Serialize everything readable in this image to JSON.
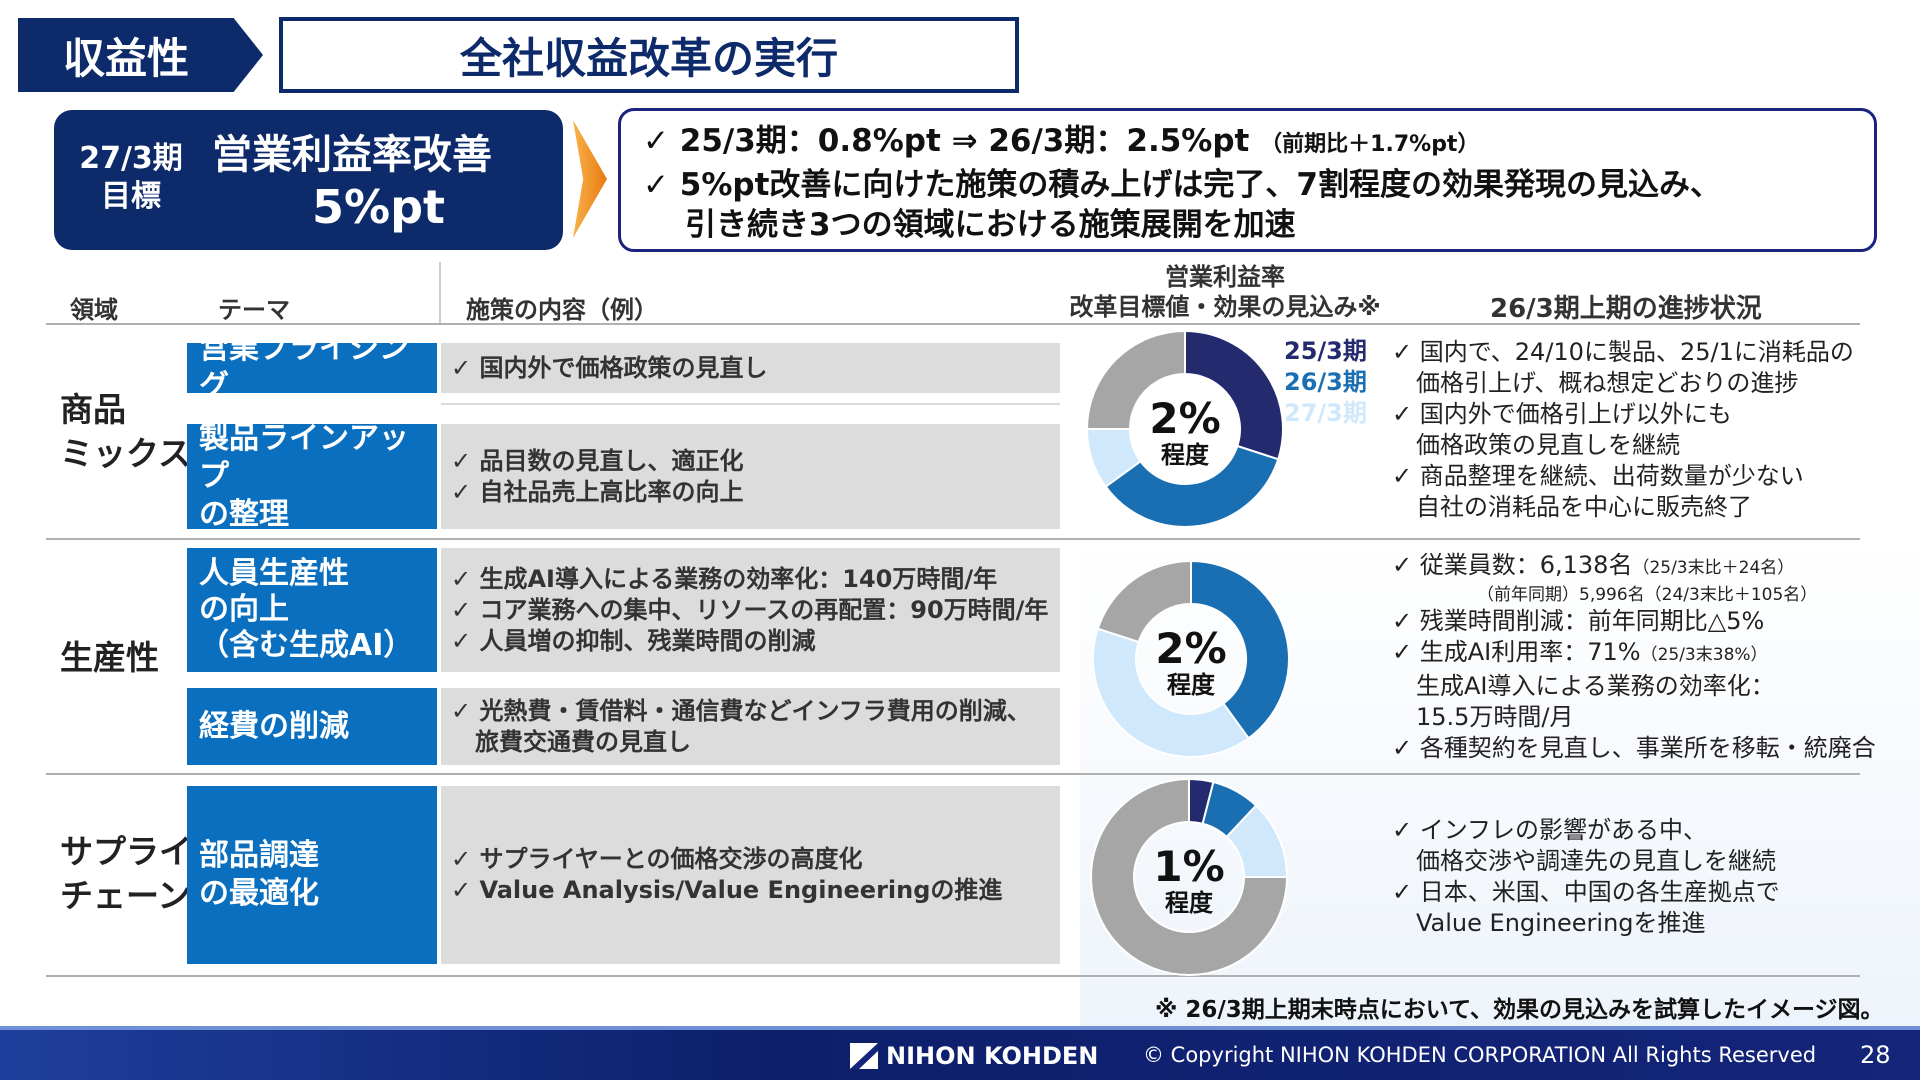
{
  "header": {
    "category": "収益性",
    "title": "全社収益改革の実行"
  },
  "goal": {
    "period": "27/3期",
    "label": "目標",
    "title": "営業利益率改善",
    "value": "5%pt"
  },
  "summary": {
    "line1": "✓ 25/3期：0.8%pt ⇒ 26/3期：2.5%pt",
    "line1_note": "（前期比＋1.7%pt）",
    "line2": "✓ 5%pt改善に向けた施策の積み上げは完了、7割程度の効果発現の見込み、",
    "line3": "引き続き3つの領域における施策展開を加速"
  },
  "table_headers": {
    "area": "領域",
    "theme": "テーマ",
    "content": "施策の内容（例）",
    "effect_l1": "営業利益率",
    "effect_l2": "改革目標値・効果の見込み※",
    "progress": "26/3期上期の進捗状況"
  },
  "legend": [
    {
      "label": "25/3期",
      "color": "#232a6e"
    },
    {
      "label": "26/3期",
      "color": "#1a6fb3"
    },
    {
      "label": "27/3期",
      "color": "#cfe8fb"
    }
  ],
  "rows": [
    {
      "area_l1": "商品",
      "area_l2": "ミックス",
      "themes": [
        {
          "l1": "営業プライシング",
          "l2": "",
          "l3": "",
          "items": [
            "✓ 国内外で価格政策の見直し"
          ]
        },
        {
          "l1": "製品ラインアップ",
          "l2": "の整理",
          "l3": "",
          "items": [
            "✓ 品目数の見直し、適正化",
            "✓ 自社品売上高比率の向上"
          ]
        }
      ],
      "donut": {
        "value": "2%",
        "sub": "程度",
        "segments": [
          0.3,
          0.35,
          0.1
        ]
      },
      "progress": [
        "✓ 国内で、24/10に製品、25/1に消耗品の",
        "　価格引上げ、概ね想定どおりの進捗",
        "✓ 国内外で価格引上げ以外にも",
        "　価格政策の見直しを継続",
        "✓ 商品整理を継続、出荷数量が少ない",
        "　自社の消耗品を中心に販売終了"
      ]
    },
    {
      "area_l1": "生産性",
      "area_l2": "",
      "themes": [
        {
          "l1": "人員生産性",
          "l2": "の向上",
          "l3": "（含む生成AI）",
          "items": [
            "✓ 生成AI導入による業務の効率化：140万時間/年",
            "✓ コア業務への集中、リソースの再配置：90万時間/年",
            "✓ 人員増の抑制、残業時間の削減"
          ]
        },
        {
          "l1": "経費の削減",
          "l2": "",
          "l3": "",
          "items": [
            "✓ 光熱費・賃借料・通信費などインフラ費用の削減、",
            "　旅費交通費の見直し"
          ]
        }
      ],
      "donut": {
        "value": "2%",
        "sub": "程度",
        "segments": [
          0,
          0.4,
          0.4
        ]
      },
      "progress_rich": {
        "a": "✓ 従業員数：6,138名",
        "a_note": "（25/3末比＋24名）",
        "b": "（前年同期）5,996名（24/3末比＋105名）",
        "c": "✓ 残業時間削減：前年同期比△5%",
        "d": "✓ 生成AI利用率：71%",
        "d_note": "（25/3末38%）",
        "e": "　生成AI導入による業務の効率化：",
        "f": "　15.5万時間/月",
        "g": "✓ 各種契約を見直し、事業所を移転・統廃合"
      }
    },
    {
      "area_l1": "サプライ",
      "area_l2": "チェーン",
      "themes": [
        {
          "l1": "部品調達",
          "l2": "の最適化",
          "l3": "",
          "items": [
            "✓ サプライヤーとの価格交渉の高度化",
            "✓ Value Analysis/Value Engineeringの推進"
          ]
        }
      ],
      "donut": {
        "value": "1%",
        "sub": "程度",
        "segments": [
          0.04,
          0.08,
          0.13
        ]
      },
      "progress": [
        "✓ インフレの影響がある中、",
        "　価格交渉や調達先の見直しを継続",
        "✓ 日本、米国、中国の各生産拠点で",
        "　Value Engineeringを推進"
      ]
    }
  ],
  "footnote": "※ 26/3期上期末時点において、効果の見込みを試算したイメージ図。",
  "footer": {
    "logo": "NIHON KOHDEN",
    "copyright": "© Copyright  NIHON KOHDEN CORPORATION  All Rights Reserved",
    "page": "28"
  },
  "colors": {
    "navy": "#0d2a6b",
    "blue": "#0b6fbf",
    "gray": "#a6a6a6"
  }
}
